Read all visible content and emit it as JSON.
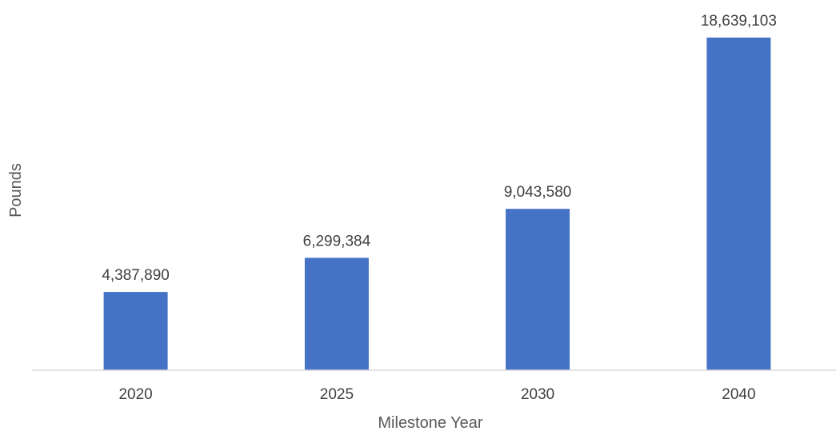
{
  "chart_data": {
    "type": "bar",
    "title": "",
    "xlabel": "Milestone Year",
    "ylabel": "Pounds",
    "categories": [
      "2020",
      "2025",
      "2030",
      "2040"
    ],
    "values": [
      4387890,
      6299384,
      9043580,
      18639103
    ],
    "data_labels": [
      "4,387,890",
      "6,299,384",
      "9,043,580",
      "18,639,103"
    ],
    "ylim": [
      0,
      18639103
    ],
    "grid": false,
    "legend": "none",
    "bar_color": "#4472C4",
    "axis_color": "#D9D9D9"
  }
}
